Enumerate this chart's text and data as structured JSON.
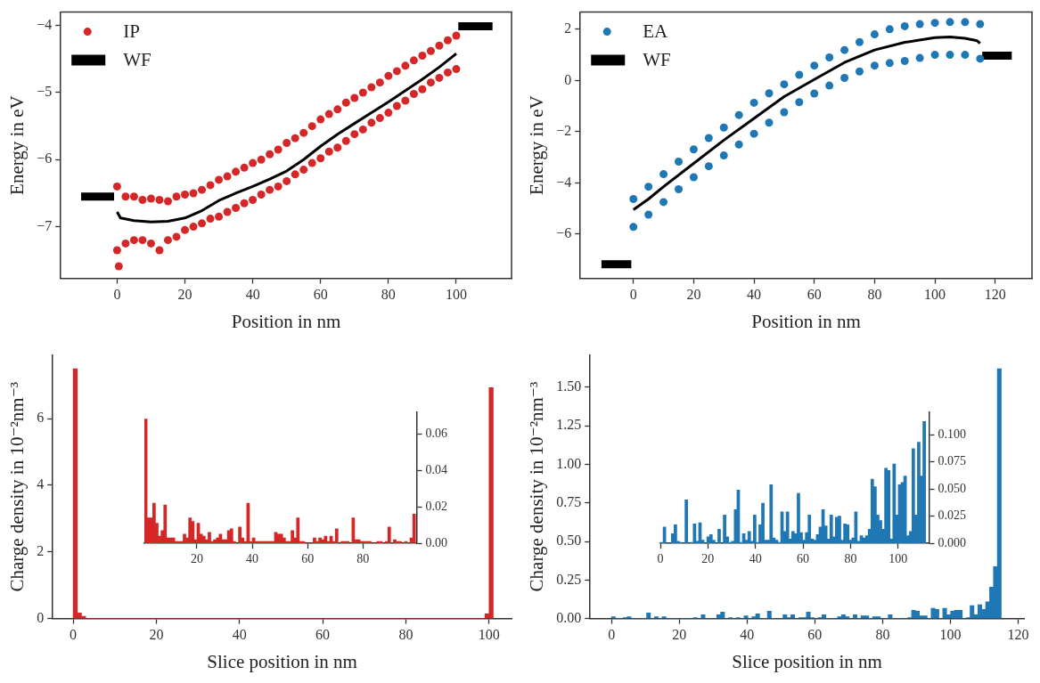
{
  "chart_data": [
    {
      "type": "scatter",
      "xlabel": "Position in nm",
      "ylabel": "Energy in eV",
      "xlim": [
        -16.6,
        116.3
      ],
      "ylim": [
        -7.77,
        -3.8
      ],
      "xticks": [
        0,
        20,
        40,
        60,
        80,
        100
      ],
      "yticks": [
        {
          "value": -7,
          "label": "−7"
        },
        {
          "value": -6,
          "label": "−6"
        },
        {
          "value": -5,
          "label": "−5"
        },
        {
          "value": -4,
          "label": "−4"
        }
      ],
      "legend": "top left",
      "series": [
        {
          "name": "IP",
          "type": "scatter",
          "marker": "circle",
          "color": "#d62728",
          "x": [
            0,
            2.5,
            5,
            7.5,
            10,
            12.5,
            15,
            17.5,
            20,
            22.5,
            25,
            27.5,
            30,
            32.5,
            35,
            37.5,
            40,
            42.5,
            45,
            47.5,
            50,
            52.5,
            55,
            57.5,
            60,
            62.5,
            65,
            67.5,
            70,
            72.5,
            75,
            77.5,
            80,
            82.5,
            85,
            87.5,
            90,
            92.5,
            95,
            97.5,
            100,
            0,
            2.5,
            5,
            7.5,
            10,
            12.5,
            15,
            17.5,
            20,
            22.5,
            25,
            27.5,
            30,
            32.5,
            35,
            37.5,
            40,
            42.5,
            45,
            47.5,
            50,
            52.5,
            55,
            57.5,
            60,
            62.5,
            65,
            67.5,
            70,
            72.5,
            75,
            77.5,
            80,
            82.5,
            85,
            87.5,
            90,
            92.5,
            95,
            97.5,
            100,
            0.5
          ],
          "values": [
            -6.4,
            -6.55,
            -6.55,
            -6.6,
            -6.58,
            -6.6,
            -6.62,
            -6.55,
            -6.52,
            -6.5,
            -6.45,
            -6.38,
            -6.3,
            -6.25,
            -6.18,
            -6.12,
            -6.05,
            -6.0,
            -5.92,
            -5.85,
            -5.75,
            -5.68,
            -5.6,
            -5.5,
            -5.4,
            -5.32,
            -5.25,
            -5.15,
            -5.08,
            -5.0,
            -4.92,
            -4.85,
            -4.75,
            -4.68,
            -4.6,
            -4.52,
            -4.45,
            -4.38,
            -4.3,
            -4.22,
            -4.15,
            -7.35,
            -7.25,
            -7.2,
            -7.2,
            -7.25,
            -7.35,
            -7.2,
            -7.15,
            -7.05,
            -7.0,
            -6.95,
            -6.88,
            -6.85,
            -6.78,
            -6.72,
            -6.65,
            -6.6,
            -6.52,
            -6.45,
            -6.4,
            -6.32,
            -6.22,
            -6.15,
            -6.05,
            -5.98,
            -5.88,
            -5.82,
            -5.72,
            -5.62,
            -5.55,
            -5.45,
            -5.38,
            -5.3,
            -5.2,
            -5.12,
            -5.02,
            -4.95,
            -4.85,
            -4.78,
            -4.7,
            -4.65,
            -7.59
          ]
        },
        {
          "type": "line",
          "color": "#000000",
          "x": [
            0,
            1,
            5,
            10,
            15,
            20,
            25,
            30,
            35,
            40,
            45,
            50,
            55,
            60,
            65,
            70,
            75,
            80,
            85,
            90,
            95,
            100
          ],
          "values": [
            -6.78,
            -6.87,
            -6.91,
            -6.93,
            -6.92,
            -6.87,
            -6.76,
            -6.61,
            -6.5,
            -6.4,
            -6.29,
            -6.17,
            -6.0,
            -5.8,
            -5.62,
            -5.46,
            -5.3,
            -5.14,
            -4.97,
            -4.8,
            -4.62,
            -4.42
          ]
        },
        {
          "name": "WF",
          "type": "line",
          "color": "#000000",
          "x": [
            -10.6,
            -0.9,
            50,
            100.6,
            110.7
          ],
          "values": [
            -6.55,
            -6.55,
            null,
            -4.01,
            -4.01
          ]
        }
      ]
    },
    {
      "type": "scatter",
      "xlabel": "Position in nm",
      "ylabel": "Energy in eV",
      "xlim": [
        -17.6,
        132.2
      ],
      "ylim": [
        -7.73,
        2.67
      ],
      "xticks": [
        0,
        20,
        40,
        60,
        80,
        100,
        120
      ],
      "yticks": [
        {
          "value": -6,
          "label": "−6"
        },
        {
          "value": -4,
          "label": "−4"
        },
        {
          "value": -2,
          "label": "−2"
        },
        0,
        2
      ],
      "legend": "top left",
      "series": [
        {
          "name": "EA",
          "type": "scatter",
          "marker": "circle",
          "color": "#1f77b4",
          "x": [
            0,
            5,
            10,
            15,
            20,
            25,
            30,
            35,
            40,
            45,
            50,
            55,
            60,
            65,
            70,
            75,
            80,
            85,
            90,
            95,
            100,
            105,
            110,
            115,
            0,
            5,
            10,
            15,
            20,
            25,
            30,
            35,
            40,
            45,
            50,
            55,
            60,
            65,
            70,
            75,
            80,
            85,
            90,
            95,
            100,
            105,
            110,
            115
          ],
          "values": [
            -4.63,
            -4.15,
            -3.66,
            -3.17,
            -2.69,
            -2.25,
            -1.84,
            -1.35,
            -0.87,
            -0.5,
            -0.15,
            0.22,
            0.58,
            0.9,
            1.19,
            1.5,
            1.8,
            2.0,
            2.12,
            2.2,
            2.25,
            2.28,
            2.28,
            2.2,
            -5.72,
            -5.24,
            -4.75,
            -4.25,
            -3.78,
            -3.35,
            -2.93,
            -2.5,
            -2.08,
            -1.65,
            -1.24,
            -0.85,
            -0.51,
            -0.2,
            0.1,
            0.35,
            0.58,
            0.68,
            0.76,
            0.88,
            1.0,
            1.0,
            1.0,
            0.85
          ]
        },
        {
          "type": "line",
          "color": "#000000",
          "x": [
            0,
            5,
            10,
            20,
            30,
            40,
            50,
            60,
            70,
            80,
            90,
            100,
            105,
            110,
            114,
            115
          ],
          "values": [
            -5.05,
            -4.63,
            -4.15,
            -3.24,
            -2.33,
            -1.48,
            -0.63,
            0.04,
            0.7,
            1.19,
            1.49,
            1.67,
            1.7,
            1.65,
            1.55,
            1.45
          ]
        },
        {
          "name": "WF",
          "type": "line",
          "color": "#000000",
          "x": [
            -10.6,
            -0.7,
            50,
            115.7,
            125.5
          ],
          "values": [
            -7.18,
            -7.18,
            null,
            0.97,
            0.97
          ]
        }
      ]
    },
    {
      "type": "histogram",
      "xlabel": "Slice position in nm",
      "ylabel": "Charge density in 10⁻²nm⁻³",
      "xlim": [
        -4.9,
        105.4
      ],
      "ylim": [
        0,
        7.9
      ],
      "xticks": [
        0,
        20,
        40,
        60,
        80,
        100
      ],
      "yticks": [
        0,
        2,
        4,
        6
      ],
      "bins": [
        0,
        1,
        2,
        3,
        4,
        5,
        6,
        7,
        8,
        9,
        10,
        11,
        12,
        13,
        14,
        15,
        16,
        17,
        18,
        19,
        20,
        21,
        22,
        23,
        24,
        25,
        26,
        27,
        28,
        29,
        30,
        31,
        32,
        33,
        34,
        35,
        36,
        37,
        38,
        39,
        40,
        41,
        42,
        43,
        44,
        45,
        46,
        47,
        48,
        49,
        50,
        51,
        52,
        53,
        54,
        55,
        56,
        57,
        58,
        59,
        60,
        61,
        62,
        63,
        64,
        65,
        66,
        67,
        68,
        69,
        70,
        71,
        72,
        73,
        74,
        75,
        76,
        77,
        78,
        79,
        80,
        81,
        82,
        83,
        84,
        85,
        86,
        87,
        88,
        89,
        90,
        91,
        92,
        93,
        94,
        95,
        96,
        97,
        98,
        99,
        100,
        101
      ],
      "series": [
        {
          "color": "#d62728",
          "values": [
            7.5,
            0.17,
            0.07,
            0,
            0,
            0,
            0,
            0,
            0,
            0,
            0,
            0,
            0,
            0,
            0,
            0,
            0,
            0,
            0,
            0,
            0,
            0,
            0,
            0,
            0,
            0,
            0,
            0,
            0,
            0,
            0,
            0,
            0,
            0,
            0,
            0,
            0,
            0,
            0,
            0,
            0,
            0,
            0,
            0,
            0,
            0,
            0,
            0,
            0,
            0,
            0,
            0,
            0,
            0,
            0,
            0,
            0,
            0,
            0,
            0,
            0,
            0,
            0,
            0,
            0,
            0,
            0,
            0,
            0,
            0,
            0,
            0,
            0,
            0,
            0,
            0,
            0,
            0,
            0,
            0,
            0,
            0,
            0,
            0,
            0,
            0,
            0,
            0,
            0,
            0,
            0,
            0,
            0,
            0,
            0,
            0,
            0,
            0,
            0,
            0.14,
            6.93
          ]
        }
      ]
    },
    {
      "type": "histogram",
      "xlim": [
        1,
        99.4
      ],
      "y2lim": [
        0,
        0.072
      ],
      "xticks": [
        20,
        40,
        60,
        80
      ],
      "y2ticks": [
        {
          "value": 0,
          "label": "0.00"
        },
        {
          "value": 0.02,
          "label": "0.02"
        },
        {
          "value": 0.04,
          "label": "0.04"
        },
        {
          "value": 0.06,
          "label": "0.06"
        }
      ],
      "bins": [
        1,
        2,
        3,
        4,
        5,
        6,
        7,
        8,
        9,
        10,
        11,
        12,
        13,
        14,
        15,
        16,
        17,
        18,
        19,
        20,
        21,
        22,
        23,
        24,
        25,
        26,
        27,
        28,
        29,
        30,
        31,
        32,
        33,
        34,
        35,
        36,
        37,
        38,
        39,
        40,
        41,
        42,
        43,
        44,
        45,
        46,
        47,
        48,
        49,
        50,
        51,
        52,
        53,
        54,
        55,
        56,
        57,
        58,
        59,
        60,
        61,
        62,
        63,
        64,
        65,
        66,
        67,
        68,
        69,
        70,
        71,
        72,
        73,
        74,
        75,
        76,
        77,
        78,
        79,
        80,
        81,
        82,
        83,
        84,
        85,
        86,
        87,
        88,
        89,
        90,
        91,
        92,
        93,
        94,
        95,
        96,
        97,
        98,
        99
      ],
      "series": [
        {
          "color": "#d62728",
          "axis": "y2",
          "values": [
            0.068,
            0.014,
            0.014,
            0.022,
            0.011,
            0.004,
            0.007,
            0.021,
            0.003,
            0.003,
            0.003,
            0.001,
            0.001,
            0.001,
            0.005,
            0.003,
            0.014,
            0.012,
            0.002,
            0.011,
            0.005,
            0.004,
            0.002,
            0.006,
            0.001,
            0.002,
            0.003,
            0.005,
            0.002,
            0.002,
            0.007,
            0.008,
            0.001,
            0,
            0.009,
            0.003,
            0.001,
            0.022,
            0.001,
            0.003,
            0.001,
            0.001,
            0.001,
            0.001,
            0.001,
            0.001,
            0.001,
            0.006,
            0.005,
            0.005,
            0.003,
            0.001,
            0.001,
            0.007,
            0.003,
            0.014,
            0.001,
            0.001,
            0,
            0,
            0,
            0.003,
            0.001,
            0.003,
            0.002,
            0.004,
            0.001,
            0.004,
            0.001,
            0.008,
            0,
            0.001,
            0.001,
            0.001,
            0,
            0.014,
            0.002,
            0.002,
            0.001,
            0.001,
            0.001,
            0.001,
            0,
            0,
            0.001,
            0.001,
            0,
            0.001,
            0.009,
            0,
            0.002,
            0.001,
            0.001,
            0,
            0.001,
            0,
            0.003,
            0.016
          ]
        }
      ]
    },
    {
      "type": "histogram",
      "xlabel": "Slice position in nm",
      "ylabel": "Charge density in 10⁻²nm⁻³",
      "xlim": [
        -6.3,
        121.7
      ],
      "ylim": [
        0,
        1.71
      ],
      "xticks": [
        0,
        20,
        40,
        60,
        80,
        100,
        120
      ],
      "yticks": [
        {
          "value": 0,
          "label": "0.00"
        },
        {
          "value": 0.25,
          "label": "0.25"
        },
        {
          "value": 0.5,
          "label": "0.50"
        },
        {
          "value": 0.75,
          "label": "0.75"
        },
        {
          "value": 1,
          "label": "1.00"
        },
        {
          "value": 1.25,
          "label": "1.25"
        },
        {
          "value": 1.5,
          "label": "1.50"
        }
      ],
      "bins": [
        0,
        1.15,
        2.3,
        3.45,
        4.6,
        5.75,
        6.9,
        8.05,
        9.2,
        10.35,
        11.5,
        12.65,
        13.8,
        14.95,
        16.1,
        17.25,
        18.4,
        19.55,
        20.7,
        21.85,
        23,
        24.15,
        25.3,
        26.45,
        27.6,
        28.75,
        29.9,
        31.05,
        32.2,
        33.35,
        34.5,
        35.65,
        36.8,
        37.95,
        39.1,
        40.25,
        41.4,
        42.55,
        43.7,
        44.85,
        46,
        47.15,
        48.3,
        49.45,
        50.6,
        51.75,
        52.9,
        54.05,
        55.2,
        56.35,
        57.5,
        58.65,
        59.8,
        60.95,
        62.1,
        63.25,
        64.4,
        65.55,
        66.7,
        67.85,
        69,
        70.15,
        71.3,
        72.45,
        73.6,
        74.75,
        75.9,
        77.05,
        78.2,
        79.35,
        80.5,
        81.65,
        82.8,
        83.95,
        85.1,
        86.25,
        87.4,
        88.55,
        89.7,
        90.85,
        92,
        93.15,
        94.3,
        95.45,
        96.6,
        97.75,
        98.9,
        100.05,
        101.2,
        102.35,
        103.5,
        104.65,
        105.8,
        106.95,
        108.1,
        109.25,
        110.4,
        111.55,
        112.7,
        113.85,
        115
      ],
      "series": [
        {
          "color": "#1f77b4",
          "values": [
            0.012,
            0,
            0,
            0.006,
            0.012,
            0,
            0,
            0,
            0,
            0.036,
            0,
            0.012,
            0,
            0.012,
            0,
            0,
            0,
            0,
            0,
            0,
            0,
            0.006,
            0,
            0.024,
            0,
            0,
            0,
            0.024,
            0.042,
            0,
            0.006,
            0,
            0.006,
            0,
            0.018,
            0,
            0.012,
            0.03,
            0,
            0,
            0.048,
            0,
            0,
            0,
            0.024,
            0.006,
            0.024,
            0,
            0.006,
            0.006,
            0.042,
            0.006,
            0,
            0.006,
            0.024,
            0,
            0,
            0,
            0.012,
            0.024,
            0.012,
            0,
            0.024,
            0,
            0.018,
            0.018,
            0,
            0.012,
            0.012,
            0,
            0,
            0.024,
            0,
            0,
            0,
            0,
            0.006,
            0.054,
            0.048,
            0.018,
            0.018,
            0,
            0.066,
            0.06,
            0,
            0.066,
            0.024,
            0.048,
            0.054,
            0.054,
            0,
            0.006,
            0.084,
            0.024,
            0.09,
            0.06,
            0.108,
            0.204,
            0.336,
            1.62
          ]
        }
      ]
    },
    {
      "type": "histogram",
      "xlim": [
        0,
        113
      ],
      "y2lim": [
        0,
        0.121
      ],
      "xticks": [
        0,
        20,
        40,
        60,
        80,
        100
      ],
      "y2ticks": [
        {
          "value": 0,
          "label": "0.000"
        },
        {
          "value": 0.025,
          "label": "0.025"
        },
        {
          "value": 0.05,
          "label": "0.050"
        },
        {
          "value": 0.075,
          "label": "0.075"
        },
        {
          "value": 0.1,
          "label": "0.100"
        }
      ],
      "bins": [
        0,
        1.15,
        2.3,
        3.45,
        4.6,
        5.75,
        6.9,
        8.05,
        9.2,
        10.35,
        11.5,
        12.65,
        13.8,
        14.95,
        16.1,
        17.25,
        18.4,
        19.55,
        20.7,
        21.85,
        23,
        24.15,
        25.3,
        26.45,
        27.6,
        28.75,
        29.9,
        31.05,
        32.2,
        33.35,
        34.5,
        35.65,
        36.8,
        37.95,
        39.1,
        40.25,
        41.4,
        42.55,
        43.7,
        44.85,
        46,
        47.15,
        48.3,
        49.45,
        50.6,
        51.75,
        52.9,
        54.05,
        55.2,
        56.35,
        57.5,
        58.65,
        59.8,
        60.95,
        62.1,
        63.25,
        64.4,
        65.55,
        66.7,
        67.85,
        69,
        70.15,
        71.3,
        72.45,
        73.6,
        74.75,
        75.9,
        77.05,
        78.2,
        79.35,
        80.5,
        81.65,
        82.8,
        83.95,
        85.1,
        86.25,
        87.4,
        88.55,
        89.7,
        90.85,
        92,
        93.15,
        94.3,
        95.45,
        96.6,
        97.75,
        98.9,
        100.05,
        101.2,
        102.35,
        103.5,
        104.65,
        105.8,
        106.95,
        108.1,
        109.25,
        110.4,
        111.55
      ],
      "series": [
        {
          "color": "#1f77b4",
          "axis": "y2",
          "values": [
            0.001,
            0.015,
            0,
            0,
            0.009,
            0.017,
            0.002,
            0.001,
            0,
            0.04,
            0,
            0.001,
            0.018,
            0.002,
            0.019,
            0.003,
            0,
            0.006,
            0.008,
            0.003,
            0,
            0.013,
            0,
            0.026,
            0.006,
            0.001,
            0.002,
            0.031,
            0.049,
            0.001,
            0.009,
            0.003,
            0.011,
            0.002,
            0.026,
            0.001,
            0.017,
            0.037,
            0.003,
            0.003,
            0.054,
            0.005,
            0.003,
            0.001,
            0.029,
            0.011,
            0.029,
            0.004,
            0.011,
            0.009,
            0.046,
            0.01,
            0.003,
            0.01,
            0.026,
            0.004,
            0.003,
            0.008,
            0.015,
            0.031,
            0.016,
            0.004,
            0.026,
            0.006,
            0.024,
            0.025,
            0.003,
            0.018,
            0.017,
            0.003,
            0.005,
            0.029,
            0.002,
            0.007,
            0.005,
            0.007,
            0.013,
            0.059,
            0.052,
            0.026,
            0.021,
            0.013,
            0.069,
            0.067,
            0.004,
            0.073,
            0.026,
            0.054,
            0.056,
            0.062,
            0.007,
            0.011,
            0.087,
            0.026,
            0.093,
            0.062,
            0.112
          ]
        }
      ]
    }
  ]
}
